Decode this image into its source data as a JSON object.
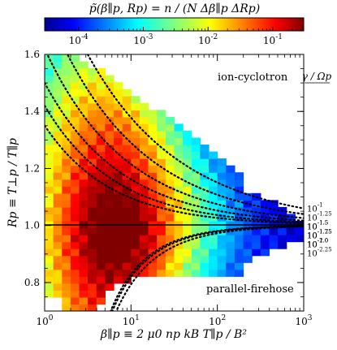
{
  "chart_data": {
    "type": "heatmap",
    "title": "p̃(β∥p, Rp) = n / (N Δβ∥p ΔRp)",
    "xlabel": "β∥p ≡ 2 μ0 np kB T∥p / B²",
    "ylabel": "Rp ≡ T⊥p / T∥p",
    "xscale": "log",
    "xlim": [
      1,
      1000
    ],
    "ylim": [
      0.7,
      1.6
    ],
    "x_ticks": [
      "10^0",
      "10^1",
      "10^2",
      "10^3"
    ],
    "y_ticks": [
      "0.8",
      "1.0",
      "1.2",
      "1.4",
      "1.6"
    ],
    "colorbar": {
      "scale": "log",
      "range": [
        3e-05,
        0.3
      ],
      "ticks": [
        "10^-4",
        "10^-3",
        "10^-2",
        "10^-1"
      ],
      "colormap": "jet"
    },
    "grid": false,
    "reference_line": {
      "y": 1.0,
      "style": "solid",
      "color": "#000000"
    },
    "annotations": {
      "upper": "ion-cyclotron",
      "lower": "parallel-firehose"
    },
    "threshold_header": "γ / Ωp",
    "thresholds_upper": [
      {
        "label": "10^-1",
        "exp": "-1",
        "a": 0.95,
        "b": 0.4,
        "beta0": 0.0
      },
      {
        "label": "10^-1.25",
        "exp": "-1.25",
        "a": 0.78,
        "b": 0.43,
        "beta0": 0.0
      },
      {
        "label": "10^-1.5",
        "exp": "-1.5",
        "a": 0.62,
        "b": 0.46,
        "beta0": 0.0
      },
      {
        "label": "10^-1.75",
        "exp": "-1.75",
        "a": 0.5,
        "b": 0.49,
        "beta0": 0.0
      },
      {
        "label": "10^-2.0",
        "exp": "-2.0",
        "a": 0.42,
        "b": 0.53,
        "beta0": 0.0
      },
      {
        "label": "10^-2.25",
        "exp": "-2.25",
        "a": 0.35,
        "b": 0.56,
        "beta0": 0.0
      }
    ],
    "thresholds_lower": [
      {
        "label": "10^-1.5",
        "exp": "-1.5",
        "a": -1.3,
        "b": 0.92,
        "beta0": 0.9
      },
      {
        "label": "10^-1.25",
        "exp": "-1.25",
        "a": -1.32,
        "b": 0.9,
        "beta0": 0.9
      },
      {
        "label": "10^-1.0",
        "exp": "-1.0",
        "a": -1.35,
        "b": 0.85,
        "beta0": 0.9
      }
    ]
  }
}
